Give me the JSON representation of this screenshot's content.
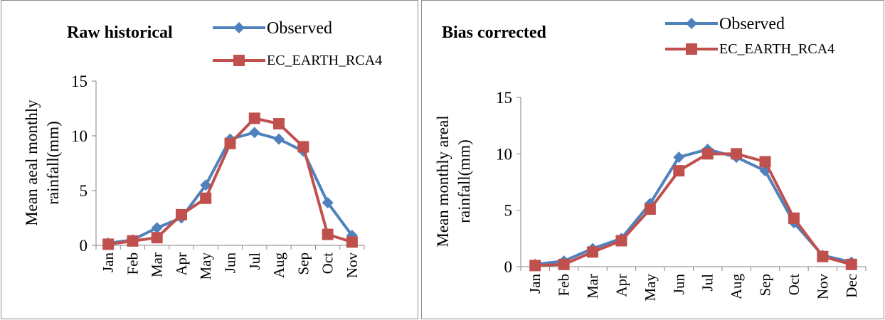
{
  "chart_data": [
    {
      "type": "line",
      "title": "Raw historical",
      "ylabel": [
        "Mean aeal monthly",
        "rainfall(mm)"
      ],
      "xlabel": "",
      "ylim": [
        0,
        15
      ],
      "yticks": [
        "0",
        "5",
        "10",
        "15"
      ],
      "categories": [
        "Jan",
        "Feb",
        "Mar",
        "Apr",
        "May",
        "Jun",
        "Jul",
        "Aug",
        "Sep",
        "Oct",
        "Nov"
      ],
      "legend_position": "top-right",
      "grid": false,
      "series": [
        {
          "name": "Observed",
          "color": "#4f81bd",
          "marker": "diamond",
          "values": [
            0.2,
            0.5,
            1.6,
            2.5,
            5.5,
            9.7,
            10.3,
            9.7,
            8.6,
            3.9,
            0.9
          ]
        },
        {
          "name": "EC_EARTH_RCA4",
          "color": "#c0504d",
          "marker": "square",
          "values": [
            0.1,
            0.4,
            0.7,
            2.8,
            4.3,
            9.3,
            11.6,
            11.1,
            9.0,
            1.0,
            0.3
          ]
        }
      ]
    },
    {
      "type": "line",
      "title": "Bias corrected",
      "ylabel": [
        "Mean monthly areal",
        "rainfall(mm)"
      ],
      "xlabel": "",
      "ylim": [
        0,
        15
      ],
      "yticks": [
        "0",
        "5",
        "10",
        "15"
      ],
      "categories": [
        "Jan",
        "Feb",
        "Mar",
        "Apr",
        "May",
        "Jun",
        "Jul",
        "Aug",
        "Sep",
        "Oct",
        "Nov",
        "Dec"
      ],
      "legend_position": "top-right",
      "grid": false,
      "series": [
        {
          "name": "Observed",
          "color": "#4f81bd",
          "marker": "diamond",
          "values": [
            0.2,
            0.5,
            1.6,
            2.5,
            5.6,
            9.7,
            10.4,
            9.7,
            8.5,
            3.9,
            1.0,
            0.4
          ]
        },
        {
          "name": "EC_EARTH_RCA4",
          "color": "#c0504d",
          "marker": "square",
          "values": [
            0.1,
            0.2,
            1.3,
            2.3,
            5.1,
            8.5,
            10.0,
            10.0,
            9.3,
            4.3,
            0.9,
            0.2
          ]
        }
      ]
    }
  ]
}
